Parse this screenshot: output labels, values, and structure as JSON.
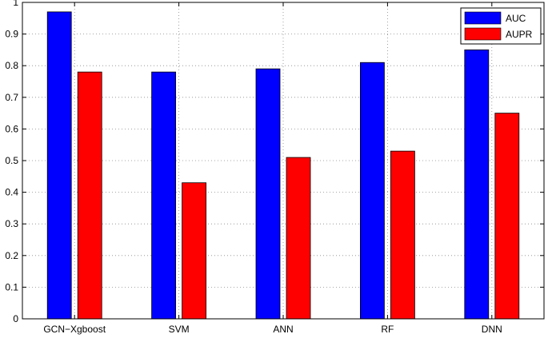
{
  "chart_data": {
    "type": "bar",
    "title": "",
    "xlabel": "",
    "ylabel": "",
    "categories": [
      "GCN−Xgboost",
      "SVM",
      "ANN",
      "RF",
      "DNN"
    ],
    "series": [
      {
        "name": "AUC",
        "color": "#0000ff",
        "values": [
          0.97,
          0.78,
          0.79,
          0.81,
          0.85
        ]
      },
      {
        "name": "AUPR",
        "color": "#ff0000",
        "values": [
          0.78,
          0.43,
          0.51,
          0.53,
          0.65
        ]
      }
    ],
    "ylim": [
      0,
      1
    ],
    "yticks": [
      "0",
      "0.1",
      "0.2",
      "0.3",
      "0.4",
      "0.5",
      "0.6",
      "0.7",
      "0.8",
      "0.9",
      "1"
    ],
    "grid": true,
    "legend_position": "top-right"
  }
}
